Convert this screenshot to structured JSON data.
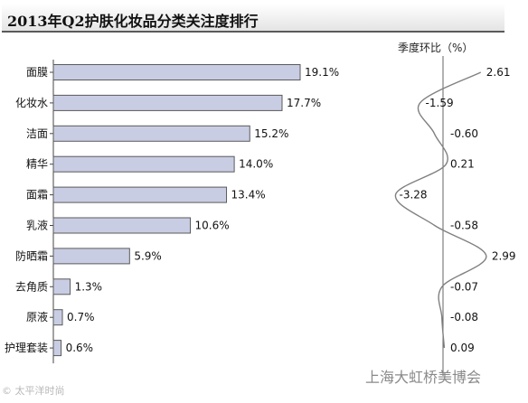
{
  "title": "2013年Q2护肤化妆品分类关注度排行",
  "right_header": "季度环比（%）",
  "watermark_bottom": "© 太平洋时尚",
  "watermark_right": "上海大虹桥美博会",
  "chart_data": [
    {
      "type": "bar",
      "orientation": "horizontal",
      "categories": [
        "面膜",
        "化妆水",
        "洁面",
        "精华",
        "面霜",
        "乳液",
        "防晒霜",
        "去角质",
        "原液",
        "护理套装"
      ],
      "values": [
        19.1,
        17.7,
        15.2,
        14.0,
        13.4,
        10.6,
        5.9,
        1.3,
        0.7,
        0.6
      ],
      "value_labels": [
        "19.1%",
        "17.7%",
        "15.2%",
        "14.0%",
        "13.4%",
        "10.6%",
        "5.9%",
        "1.3%",
        "0.7%",
        "0.6%"
      ],
      "xlim": [
        0,
        19.1
      ],
      "bar_color": "#c9cde3",
      "bar_edge_color": "#5a5a5a"
    },
    {
      "type": "line",
      "orientation": "vertical",
      "title": "季度环比（%）",
      "categories": [
        "面膜",
        "化妆水",
        "洁面",
        "精华",
        "面霜",
        "乳液",
        "防晒霜",
        "去角质",
        "原液",
        "护理套装"
      ],
      "values": [
        2.61,
        -1.59,
        -0.6,
        0.21,
        -3.28,
        -0.58,
        2.99,
        -0.07,
        -0.08,
        0.09
      ],
      "value_labels": [
        "2.61",
        "-1.59",
        "-0.60",
        "0.21",
        "-3.28",
        "-0.58",
        "2.99",
        "-0.07",
        "-0.08",
        "0.09"
      ],
      "zero_line": true,
      "line_color": "#808080"
    }
  ]
}
